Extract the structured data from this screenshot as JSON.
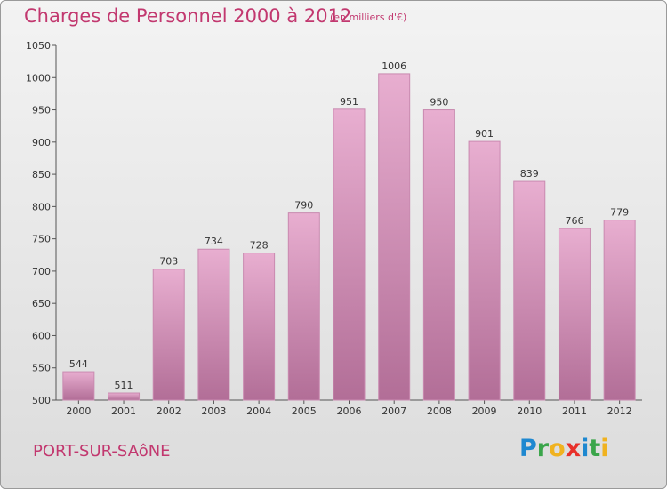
{
  "title": "Charges de Personnel 2000 à 2012",
  "subtitle": "(en milliers d'€)",
  "commune": "PORT-SUR-SAôNE",
  "logo": {
    "letters": [
      {
        "ch": "P",
        "color": "#1e88d0"
      },
      {
        "ch": "r",
        "color": "#3aa54a"
      },
      {
        "ch": "o",
        "color": "#f0b21f"
      },
      {
        "ch": "x",
        "color": "#e8302a"
      },
      {
        "ch": "i",
        "color": "#1e88d0"
      },
      {
        "ch": "t",
        "color": "#3aa54a"
      },
      {
        "ch": "i",
        "color": "#f0b21f"
      }
    ]
  },
  "colors": {
    "bar_top": "#e8aed0",
    "bar_bottom": "#b26e97",
    "bar_edge": "#c98ab0",
    "title": "#c2386f"
  },
  "chart_data": {
    "type": "bar",
    "categories": [
      "2000",
      "2001",
      "2002",
      "2003",
      "2004",
      "2005",
      "2006",
      "2007",
      "2008",
      "2009",
      "2010",
      "2011",
      "2012"
    ],
    "values": [
      544,
      511,
      703,
      734,
      728,
      790,
      951,
      1006,
      950,
      901,
      839,
      766,
      779
    ],
    "yticks": [
      "500",
      "550",
      "600",
      "650",
      "700",
      "750",
      "800",
      "850",
      "900",
      "950",
      "1000",
      "1050"
    ],
    "ylim": [
      500,
      1050
    ],
    "grid": false,
    "legend": "none"
  }
}
